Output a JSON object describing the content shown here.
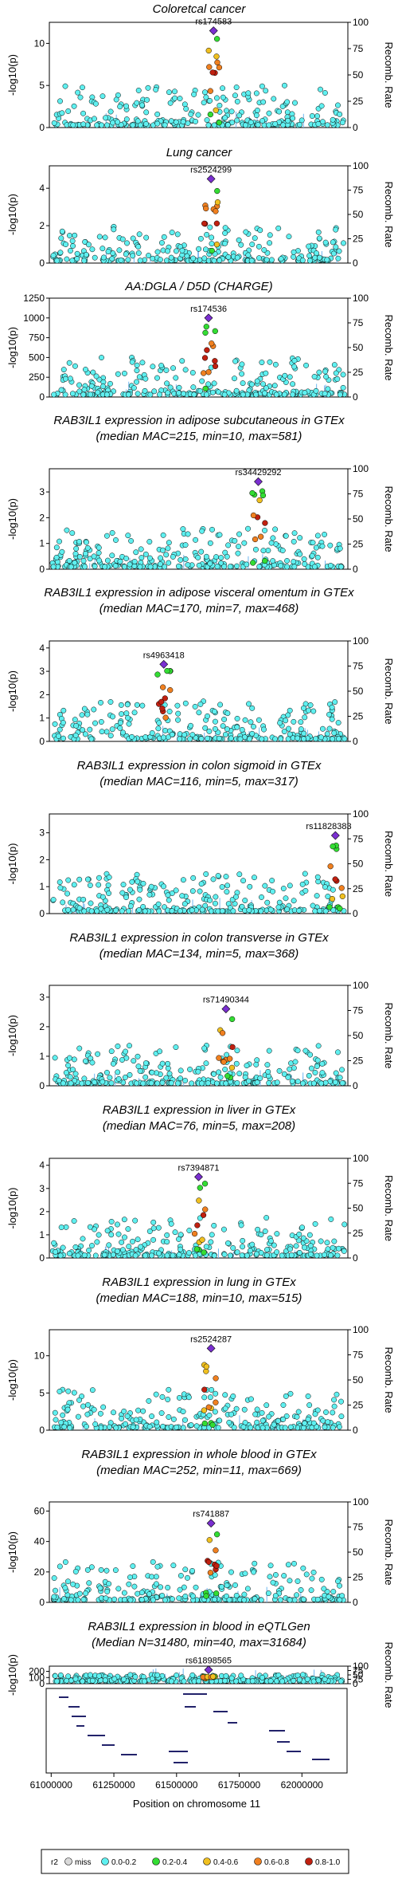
{
  "figure": {
    "x_axis_title": "Position on chromosome 11",
    "y_axis_title": "-log10(p)",
    "right_axis_title": "Recomb. Rate",
    "x_ticks": [
      "61000000",
      "61250000",
      "61500000",
      "61750000",
      "62000000"
    ]
  },
  "legend": {
    "title": "r2",
    "items": [
      {
        "label": "miss",
        "color": "#d9d9d9"
      },
      {
        "label": "0.0-0.2",
        "color": "#5ff0f0"
      },
      {
        "label": "0.2-0.4",
        "color": "#33dd33"
      },
      {
        "label": "0.4-0.6",
        "color": "#f0c020"
      },
      {
        "label": "0.6-0.8",
        "color": "#f08020"
      },
      {
        "label": "0.8-1.0",
        "color": "#c02010"
      }
    ],
    "lead_color": "#7a2fd0"
  },
  "chart_data": [
    {
      "type": "scatter",
      "title_lines": [
        "Coloretcal cancer"
      ],
      "lead_snp": "rs174583",
      "lead_position": 61640000,
      "lead_value": 11.5,
      "ylim": [
        0,
        12.5
      ],
      "y_ticks": [
        0,
        5,
        10
      ],
      "y2_ticks": [
        0,
        25,
        50,
        75,
        100
      ],
      "x_range": [
        60980000,
        62180000
      ],
      "recomb_rate_range": [
        0,
        100
      ]
    },
    {
      "type": "scatter",
      "title_lines": [
        "Lung cancer"
      ],
      "lead_snp": "rs2524299",
      "lead_position": 61630000,
      "lead_value": 4.5,
      "ylim": [
        0,
        5.2
      ],
      "y_ticks": [
        0,
        2,
        4
      ],
      "y2_ticks": [
        0,
        25,
        50,
        75,
        100
      ],
      "x_range": [
        60980000,
        62180000
      ],
      "recomb_rate_range": [
        0,
        100
      ]
    },
    {
      "type": "scatter",
      "title_lines": [
        "AA:DGLA / D5D (CHARGE)"
      ],
      "lead_snp": "rs174536",
      "lead_position": 61620000,
      "lead_value": 1000,
      "ylim": [
        0,
        1250
      ],
      "y_ticks": [
        0,
        250,
        500,
        750,
        1000,
        1250
      ],
      "y2_ticks": [
        0,
        25,
        50,
        75,
        100
      ],
      "x_range": [
        60980000,
        62180000
      ],
      "recomb_rate_range": [
        0,
        100
      ]
    },
    {
      "type": "scatter",
      "title_lines": [
        "RAB3IL1 expression in adipose subcutaneous in GTEx",
        "(median MAC=215, min=10, max=581)"
      ],
      "lead_snp": "rs34429292",
      "lead_position": 61820000,
      "lead_value": 3.4,
      "ylim": [
        0,
        3.9
      ],
      "y_ticks": [
        0,
        1,
        2,
        3
      ],
      "y2_ticks": [
        0,
        25,
        50,
        75,
        100
      ],
      "x_range": [
        60980000,
        62180000
      ],
      "recomb_rate_range": [
        0,
        100
      ]
    },
    {
      "type": "scatter",
      "title_lines": [
        "RAB3IL1 expression in adipose visceral omentum in GTEx",
        "(median MAC=170, min=7, max=468)"
      ],
      "lead_snp": "rs4963418",
      "lead_position": 61440000,
      "lead_value": 3.3,
      "ylim": [
        0,
        4.3
      ],
      "y_ticks": [
        0,
        1,
        2,
        3,
        4
      ],
      "y2_ticks": [
        0,
        25,
        50,
        75,
        100
      ],
      "x_range": [
        60980000,
        62180000
      ],
      "recomb_rate_range": [
        0,
        100
      ]
    },
    {
      "type": "scatter",
      "title_lines": [
        "RAB3IL1 expression in colon sigmoid in GTEx",
        "(median MAC=116, min=5, max=317)"
      ],
      "lead_snp": "rs11828383",
      "lead_position": 62130000,
      "lead_value": 2.9,
      "ylim": [
        0,
        3.7
      ],
      "y_ticks": [
        0,
        1,
        2,
        3
      ],
      "y2_ticks": [
        0,
        25,
        50,
        75,
        100
      ],
      "x_range": [
        60980000,
        62180000
      ],
      "recomb_rate_range": [
        0,
        100
      ]
    },
    {
      "type": "scatter",
      "title_lines": [
        "RAB3IL1 expression in colon transverse in GTEx",
        "(median MAC=134, min=5, max=368)"
      ],
      "lead_snp": "rs71490344",
      "lead_position": 61690000,
      "lead_value": 2.6,
      "ylim": [
        0,
        3.4
      ],
      "y_ticks": [
        0,
        1,
        2,
        3
      ],
      "y2_ticks": [
        0,
        25,
        50,
        75,
        100
      ],
      "x_range": [
        60980000,
        62180000
      ],
      "recomb_rate_range": [
        0,
        100
      ]
    },
    {
      "type": "scatter",
      "title_lines": [
        "RAB3IL1 expression in liver in GTEx",
        "(median MAC=76, min=5, max=208)"
      ],
      "lead_snp": "rs7394871",
      "lead_position": 61580000,
      "lead_value": 3.5,
      "ylim": [
        0,
        4.3
      ],
      "y_ticks": [
        0,
        1,
        2,
        3,
        4
      ],
      "y2_ticks": [
        0,
        25,
        50,
        75,
        100
      ],
      "x_range": [
        60980000,
        62180000
      ],
      "recomb_rate_range": [
        0,
        100
      ]
    },
    {
      "type": "scatter",
      "title_lines": [
        "RAB3IL1 expression in lung in GTEx",
        "(median MAC=188, min=10, max=515)"
      ],
      "lead_snp": "rs2524287",
      "lead_position": 61630000,
      "lead_value": 11.0,
      "ylim": [
        0,
        13.5
      ],
      "y_ticks": [
        0,
        5,
        10
      ],
      "y2_ticks": [
        0,
        25,
        50,
        75,
        100
      ],
      "x_range": [
        60980000,
        62180000
      ],
      "recomb_rate_range": [
        0,
        100
      ]
    },
    {
      "type": "scatter",
      "title_lines": [
        "RAB3IL1 expression in whole blood in GTEx",
        "(median MAC=252, min=11, max=669)"
      ],
      "lead_snp": "rs741887",
      "lead_position": 61630000,
      "lead_value": 52,
      "ylim": [
        0,
        66
      ],
      "y_ticks": [
        0,
        20,
        40,
        60
      ],
      "y2_ticks": [
        0,
        25,
        50,
        75,
        100
      ],
      "x_range": [
        60980000,
        62180000
      ],
      "recomb_rate_range": [
        0,
        100
      ]
    },
    {
      "type": "scatter",
      "title_lines": [
        "RAB3IL1 expression in blood in eQTLGen",
        "(Median N=31480, min=40, max=31684)"
      ],
      "lead_snp": "rs61898565",
      "lead_position": 61620000,
      "lead_value": 225,
      "ylim": [
        0,
        285
      ],
      "y_ticks": [
        0,
        100,
        200
      ],
      "y2_ticks": [
        0,
        25,
        50,
        75,
        100
      ],
      "x_range": [
        60980000,
        62180000
      ],
      "recomb_rate_range": [
        0,
        100
      ]
    }
  ]
}
